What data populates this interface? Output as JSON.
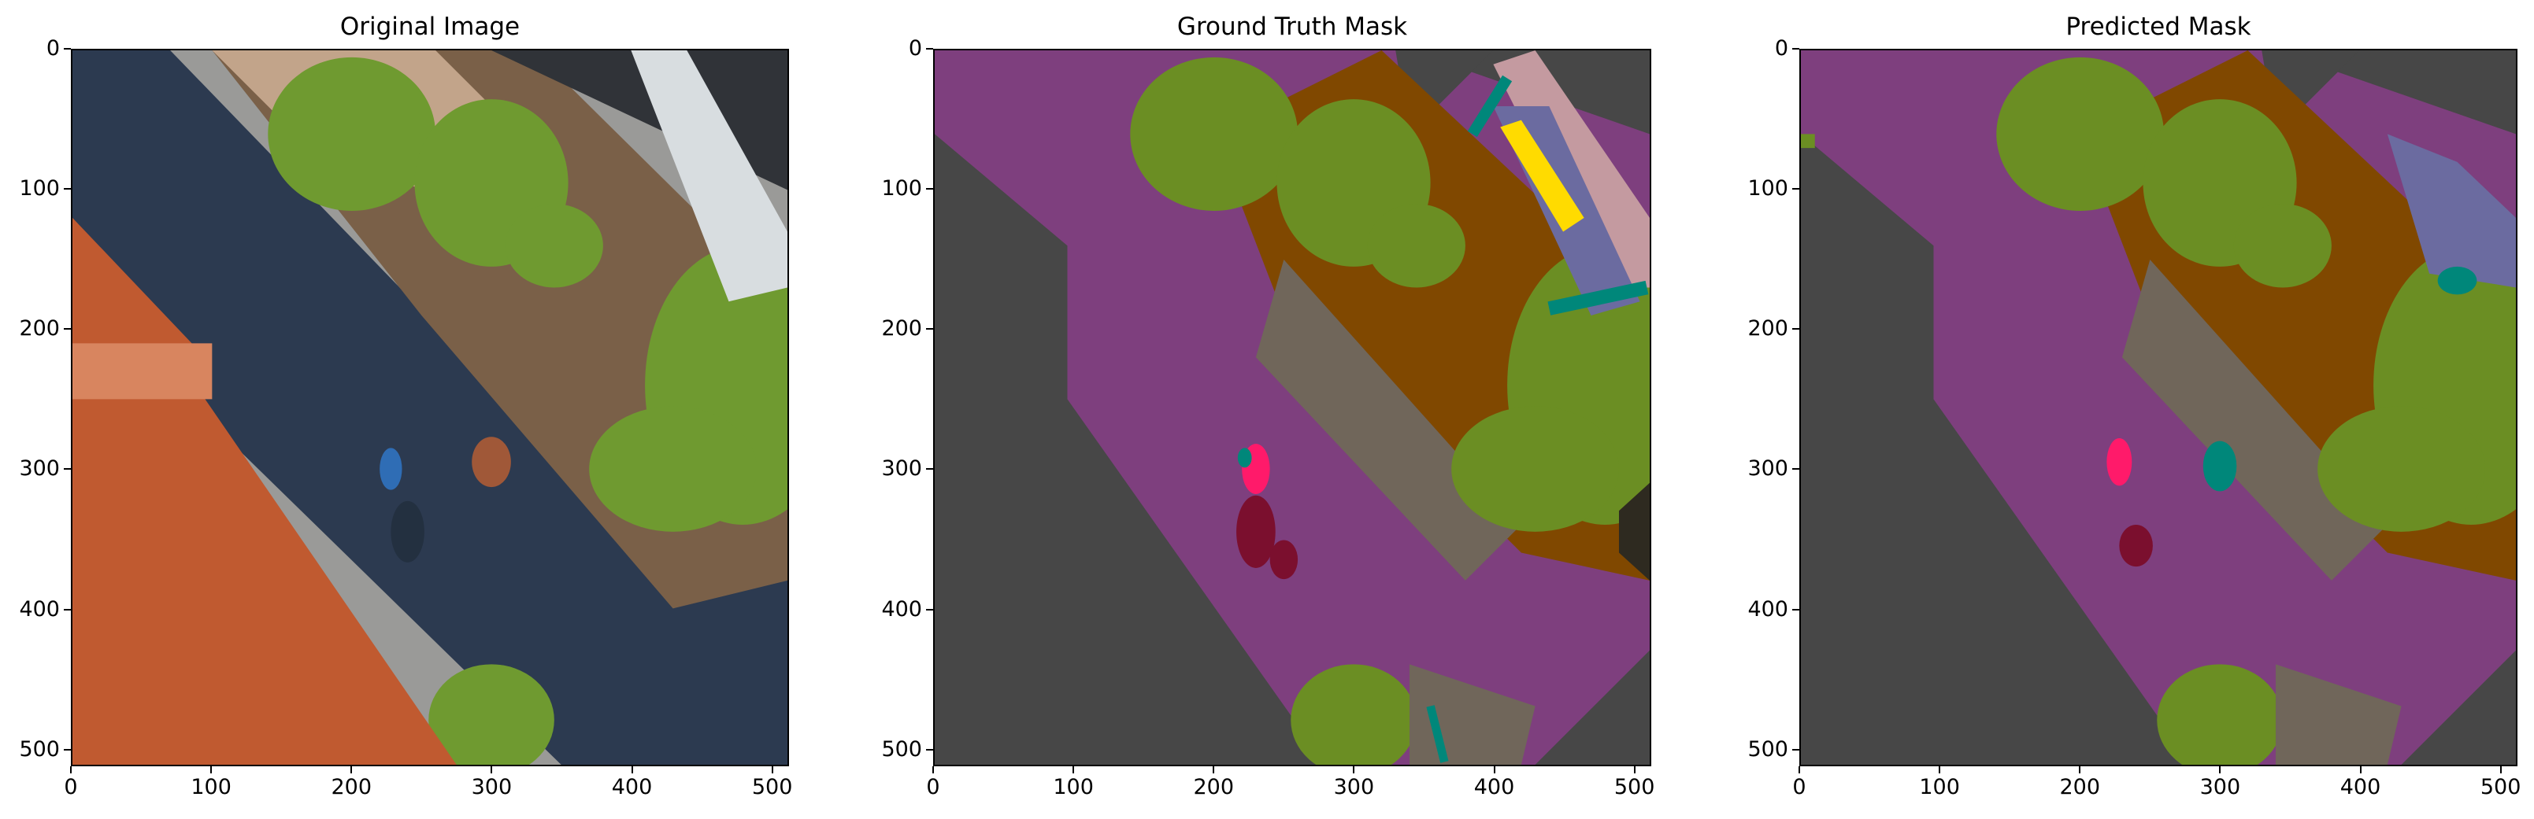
{
  "panels": [
    {
      "title": "Original Image",
      "xticks": [
        "0",
        "100",
        "200",
        "300",
        "400",
        "500"
      ],
      "yticks": [
        "0",
        "100",
        "200",
        "300",
        "400",
        "500"
      ]
    },
    {
      "title": "Ground Truth Mask",
      "xticks": [
        "0",
        "100",
        "200",
        "300",
        "400",
        "500"
      ],
      "yticks": [
        "0",
        "100",
        "200",
        "300",
        "400",
        "500"
      ]
    },
    {
      "title": "Predicted Mask",
      "xticks": [
        "0",
        "100",
        "200",
        "300",
        "400",
        "500"
      ],
      "yticks": [
        "0",
        "100",
        "200",
        "300",
        "400",
        "500"
      ]
    }
  ],
  "axis_range": {
    "x": [
      0,
      512
    ],
    "y": [
      0,
      512
    ]
  },
  "tick_values": [
    0,
    100,
    200,
    300,
    400,
    500
  ],
  "colors": {
    "road": "#7e3f7e",
    "building": "#474747",
    "vegetation": "#6b8e23",
    "soil": "#804800",
    "gravel": "#70665a",
    "person": "#ff1a6a",
    "bicycle": "#7b0f2e",
    "water": "#00877a",
    "roof_light": "#c49aa0",
    "window": "#6b6ba0",
    "pole": "#ffdb00",
    "dark": "#2e2a20",
    "photo_roof": "#c05a30",
    "photo_shadow": "#2c3a50",
    "photo_gravel": "#9a9a98",
    "photo_bush": "#6f9a30",
    "photo_soil": "#7a6048",
    "photo_roof_dark": "#303338",
    "photo_wall": "#d8dde0"
  }
}
